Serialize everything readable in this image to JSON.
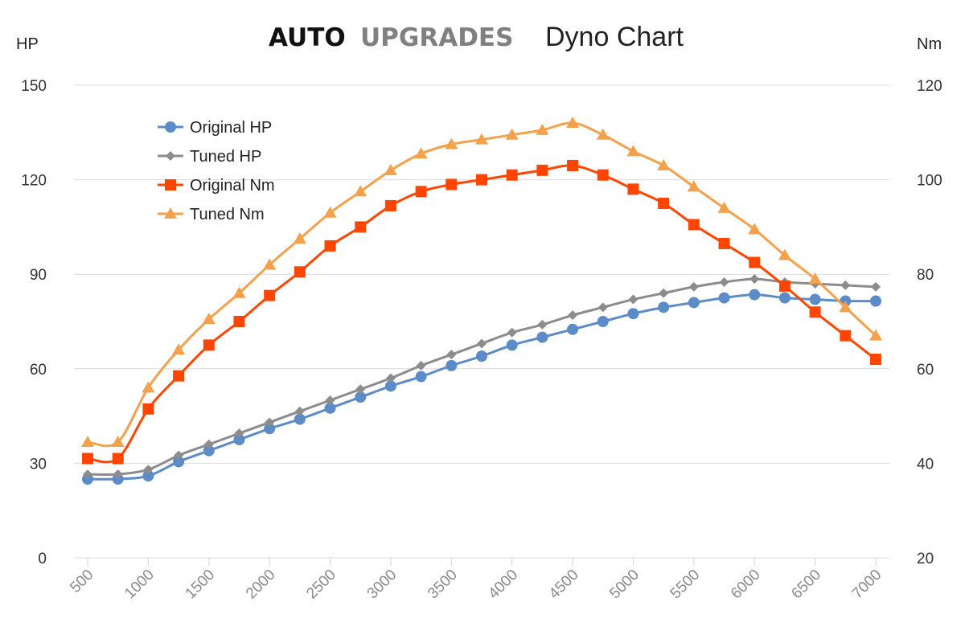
{
  "title": {
    "brand_part1": "AUTO",
    "brand_part2": "UPGRADES",
    "main": "Dyno Chart"
  },
  "chart_data": {
    "type": "line",
    "title": "Dyno Chart",
    "left_axis_label": "HP",
    "right_axis_label": "Nm",
    "x": [
      500,
      750,
      1000,
      1250,
      1500,
      1750,
      2000,
      2250,
      2500,
      2750,
      3000,
      3250,
      3500,
      3750,
      4000,
      4250,
      4500,
      4750,
      5000,
      5250,
      5500,
      5750,
      6000,
      6250,
      6500,
      6750,
      7000
    ],
    "x_tick_labels": [
      "500",
      "1000",
      "1500",
      "2000",
      "2500",
      "3000",
      "3500",
      "4000",
      "4500",
      "5000",
      "5500",
      "6000",
      "6500",
      "7000"
    ],
    "x_tick_values": [
      500,
      1000,
      1500,
      2000,
      2500,
      3000,
      3500,
      4000,
      4500,
      5000,
      5500,
      6000,
      6500,
      7000
    ],
    "xlim": [
      500,
      7000
    ],
    "left_ylim": [
      0,
      150
    ],
    "left_ticks": [
      "0",
      "30",
      "60",
      "90",
      "120",
      "150"
    ],
    "left_tick_values": [
      0,
      30,
      60,
      90,
      120,
      150
    ],
    "right_ylim": [
      20,
      120
    ],
    "right_ticks": [
      "20",
      "40",
      "60",
      "80",
      "100",
      "120"
    ],
    "right_tick_values": [
      20,
      40,
      60,
      80,
      100,
      120
    ],
    "grid": "horizontal",
    "legend_position": "top-left",
    "series": [
      {
        "name": "Original HP",
        "axis": "left",
        "color": "#5b8cc8",
        "marker": "circle",
        "values": [
          25,
          25,
          26,
          30.5,
          34,
          37.5,
          41,
          44,
          47.5,
          51,
          54.5,
          57.5,
          61,
          64,
          67.5,
          70,
          72.5,
          75,
          77.5,
          79.5,
          81,
          82.5,
          83.5,
          82.5,
          82,
          81.5,
          81.5
        ]
      },
      {
        "name": "Tuned HP",
        "axis": "left",
        "color": "#8c8c8c",
        "marker": "diamond",
        "values": [
          26.5,
          26.5,
          28,
          32.5,
          36,
          39.5,
          43,
          46.5,
          50,
          53.5,
          57,
          61,
          64.5,
          68,
          71.5,
          74,
          77,
          79.5,
          82,
          84,
          86,
          87.5,
          88.5,
          87.5,
          87,
          86.5,
          86
        ]
      },
      {
        "name": "Original Nm",
        "axis": "right",
        "color": "#ff4500",
        "marker": "square",
        "values": [
          41,
          41,
          51.5,
          58.5,
          65,
          70,
          75.5,
          80.5,
          86,
          90,
          94.5,
          97.5,
          99,
          100,
          101,
          102,
          103,
          101,
          98,
          95,
          90.5,
          86.5,
          82.5,
          77.5,
          72,
          67,
          62
        ]
      },
      {
        "name": "Tuned Nm",
        "axis": "right",
        "color": "#f5a04b",
        "marker": "triangle",
        "values": [
          44.5,
          44.5,
          56,
          64,
          70.5,
          76,
          82,
          87.5,
          93,
          97.5,
          102,
          105.5,
          107.5,
          108.5,
          109.5,
          110.5,
          112,
          109.5,
          106,
          103,
          98.5,
          94,
          89.5,
          84,
          79,
          73,
          67
        ]
      }
    ]
  }
}
